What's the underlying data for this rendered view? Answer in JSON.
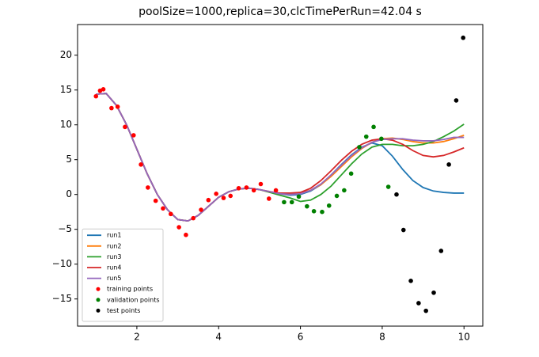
{
  "chart_data": {
    "type": "line",
    "title": "poolSize=1000,replica=30,clcTimePerRun=42.04 s",
    "x": [
      1.0,
      1.25,
      1.5,
      1.75,
      2.0,
      2.25,
      2.5,
      2.75,
      3.0,
      3.25,
      3.5,
      3.75,
      4.0,
      4.25,
      4.5,
      4.75,
      5.0,
      5.25,
      5.5,
      5.75,
      6.0,
      6.25,
      6.5,
      6.75,
      7.0,
      7.25,
      7.5,
      7.75,
      8.0,
      8.25,
      8.5,
      8.75,
      9.0,
      9.25,
      9.5,
      9.75,
      10.0
    ],
    "series": [
      {
        "name": "run1",
        "color": "#1f77b4",
        "kind": "line",
        "values": [
          14.4,
          14.5,
          12.8,
          10.0,
          6.5,
          3.0,
          0.0,
          -2.2,
          -3.6,
          -3.8,
          -3.0,
          -1.7,
          -0.4,
          0.4,
          0.8,
          0.9,
          0.7,
          0.4,
          0.1,
          -0.1,
          0.0,
          0.5,
          1.4,
          2.8,
          4.3,
          5.7,
          6.8,
          7.4,
          7.0,
          5.5,
          3.6,
          2.0,
          1.0,
          0.5,
          0.3,
          0.2,
          0.2
        ]
      },
      {
        "name": "run2",
        "color": "#ff7f0e",
        "kind": "line",
        "values": [
          14.4,
          14.5,
          12.8,
          10.0,
          6.5,
          3.0,
          0.0,
          -2.2,
          -3.6,
          -3.8,
          -3.0,
          -1.7,
          -0.4,
          0.4,
          0.8,
          0.9,
          0.7,
          0.4,
          0.1,
          0.0,
          0.2,
          0.6,
          1.4,
          2.6,
          4.0,
          5.4,
          6.6,
          7.5,
          8.0,
          8.1,
          7.9,
          7.6,
          7.4,
          7.4,
          7.6,
          8.0,
          8.5
        ]
      },
      {
        "name": "run3",
        "color": "#2ca02c",
        "kind": "line",
        "values": [
          14.4,
          14.5,
          12.8,
          10.0,
          6.5,
          3.0,
          0.0,
          -2.2,
          -3.6,
          -3.8,
          -3.0,
          -1.7,
          -0.4,
          0.4,
          0.8,
          0.9,
          0.7,
          0.3,
          -0.1,
          -0.5,
          -1.0,
          -0.8,
          0.0,
          1.2,
          2.8,
          4.4,
          5.8,
          6.8,
          7.2,
          7.2,
          7.0,
          7.0,
          7.2,
          7.6,
          8.3,
          9.1,
          10.1
        ]
      },
      {
        "name": "run4",
        "color": "#d62728",
        "kind": "line",
        "values": [
          14.4,
          14.5,
          12.8,
          10.0,
          6.5,
          3.0,
          0.0,
          -2.2,
          -3.6,
          -3.8,
          -3.0,
          -1.7,
          -0.4,
          0.4,
          0.8,
          0.9,
          0.7,
          0.4,
          0.2,
          0.2,
          0.3,
          0.9,
          2.0,
          3.4,
          4.9,
          6.2,
          7.2,
          7.8,
          8.0,
          7.8,
          7.2,
          6.3,
          5.6,
          5.4,
          5.6,
          6.1,
          6.7
        ]
      },
      {
        "name": "run5",
        "color": "#9467bd",
        "kind": "line",
        "values": [
          14.4,
          14.5,
          12.8,
          10.0,
          6.5,
          3.0,
          0.0,
          -2.2,
          -3.6,
          -3.8,
          -3.0,
          -1.7,
          -0.4,
          0.4,
          0.8,
          0.9,
          0.7,
          0.4,
          0.1,
          0.0,
          0.1,
          0.6,
          1.5,
          2.8,
          4.2,
          5.6,
          6.7,
          7.5,
          7.9,
          8.0,
          8.0,
          7.8,
          7.7,
          7.7,
          7.9,
          8.2,
          8.2
        ]
      },
      {
        "name": "training points",
        "color": "#ff0000",
        "kind": "scatter",
        "x": [
          1.0,
          1.1,
          1.18,
          1.38,
          1.53,
          1.71,
          1.92,
          2.1,
          2.27,
          2.46,
          2.64,
          2.83,
          3.03,
          3.2,
          3.38,
          3.57,
          3.75,
          3.94,
          4.12,
          4.29,
          4.49,
          4.68,
          4.86,
          5.03,
          5.23,
          5.4
        ],
        "values": [
          14.1,
          14.9,
          15.1,
          12.4,
          12.6,
          9.7,
          8.5,
          4.3,
          1.0,
          -0.9,
          -2.0,
          -2.8,
          -4.7,
          -5.8,
          -3.4,
          -2.2,
          -0.8,
          0.1,
          -0.5,
          -0.2,
          0.9,
          1.0,
          0.6,
          1.5,
          -0.6,
          0.6
        ]
      },
      {
        "name": "validation points",
        "color": "#008000",
        "kind": "scatter",
        "x": [
          5.6,
          5.79,
          5.96,
          6.16,
          6.33,
          6.53,
          6.7,
          6.89,
          7.07,
          7.24,
          7.44,
          7.61,
          7.79,
          7.98,
          8.15
        ],
        "values": [
          -1.1,
          -1.1,
          -0.3,
          -1.7,
          -2.4,
          -2.5,
          -1.6,
          -0.2,
          0.6,
          3.0,
          6.8,
          8.3,
          9.7,
          8.0,
          1.1
        ]
      },
      {
        "name": "test points",
        "color": "#000000",
        "kind": "scatter",
        "x": [
          8.35,
          8.52,
          8.7,
          8.89,
          9.07,
          9.26,
          9.44,
          9.63,
          9.81,
          9.98
        ],
        "values": [
          0.0,
          -5.1,
          -12.4,
          -15.6,
          -16.7,
          -14.1,
          -8.1,
          4.3,
          13.5,
          22.5
        ]
      }
    ],
    "xlim": [
      0.55,
      10.46
    ],
    "ylim": [
      -18.9,
      24.4
    ],
    "xticks": [
      2,
      4,
      6,
      8,
      10
    ],
    "yticks": [
      {
        "value": -15,
        "label": "−15"
      },
      {
        "value": -10,
        "label": "−10"
      },
      {
        "value": -5,
        "label": "−5"
      },
      0,
      5,
      10,
      15,
      20
    ],
    "legend": "lower left"
  }
}
